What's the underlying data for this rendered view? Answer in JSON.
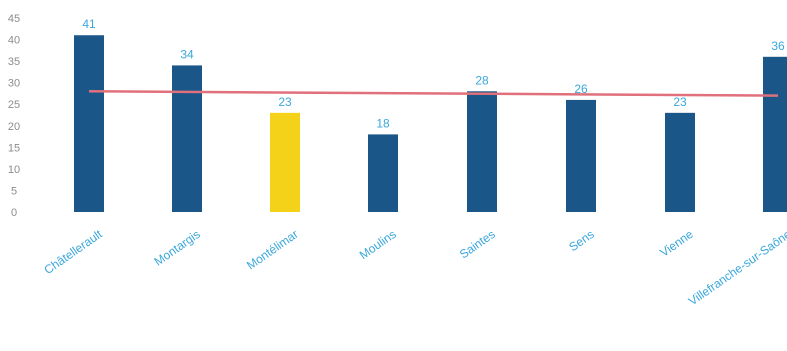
{
  "chart_data": {
    "type": "bar",
    "title": "",
    "xlabel": "",
    "ylabel": "",
    "categories": [
      "Châtellerault",
      "Montargis",
      "Montélimar",
      "Moulins",
      "Saintes",
      "Sens",
      "Vienne",
      "Villefranche-sur-Saône"
    ],
    "values": [
      41,
      34,
      23,
      18,
      28,
      26,
      23,
      36
    ],
    "highlight_index": 2,
    "ylim": [
      0,
      45
    ],
    "yticks": [
      0,
      5,
      10,
      15,
      20,
      25,
      30,
      35,
      40,
      45
    ],
    "average_line": [
      28,
      27
    ],
    "grid": false,
    "legend": "none",
    "colors": {
      "bar": "#1a5688",
      "highlight": "#f5d21a",
      "average_line": "#e0707c",
      "data_label": "#3aa7dc",
      "category_label": "#3aa7dc",
      "tick_label": "#8c8c8c"
    }
  }
}
